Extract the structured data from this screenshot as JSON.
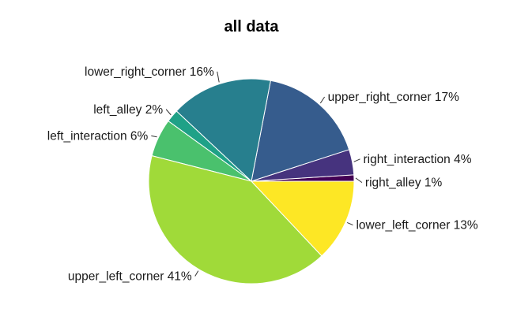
{
  "chart_data": {
    "type": "pie",
    "title": "all data",
    "slices": [
      {
        "label": "right_alley",
        "percent_label": "1%",
        "value": 1,
        "color": "#440154"
      },
      {
        "label": "right_interaction",
        "percent_label": "4%",
        "value": 4,
        "color": "#46337e"
      },
      {
        "label": "upper_right_corner",
        "percent_label": "17%",
        "value": 17,
        "color": "#365c8d"
      },
      {
        "label": "lower_right_corner",
        "percent_label": "16%",
        "value": 16,
        "color": "#277f8e"
      },
      {
        "label": "left_alley",
        "percent_label": "2%",
        "value": 2,
        "color": "#1fa187"
      },
      {
        "label": "left_interaction",
        "percent_label": "6%",
        "value": 6,
        "color": "#4ac16d"
      },
      {
        "label": "upper_left_corner",
        "percent_label": "41%",
        "value": 41,
        "color": "#a0da39"
      },
      {
        "label": "lower_left_corner",
        "percent_label": "13%",
        "value": 13,
        "color": "#fde725"
      }
    ],
    "start_angle_deg": 0,
    "direction": "counterclockwise",
    "legend": "none"
  }
}
